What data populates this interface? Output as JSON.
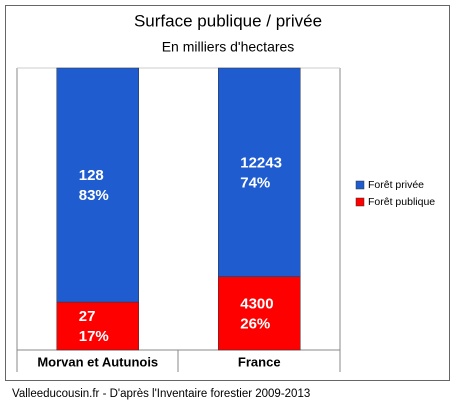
{
  "chart_data": {
    "type": "stacked-bar-100",
    "title": "Surface publique / privée",
    "subtitle": "En milliers d'hectares",
    "categories": [
      "Morvan et Autunois",
      "France"
    ],
    "ylim": [
      0,
      100
    ],
    "series": [
      {
        "name": "Forêt publique",
        "color": "#ff0000",
        "values": [
          17,
          26
        ],
        "value_labels": [
          "17%",
          "26%"
        ],
        "counts": [
          27,
          4300
        ]
      },
      {
        "name": "Forêt privée",
        "color": "#1e5ccf",
        "values": [
          83,
          74
        ],
        "value_labels": [
          "83%",
          "74%"
        ],
        "counts": [
          128,
          12243
        ]
      }
    ],
    "source": "Valleeducousin.fr - D'après l'Inventaire forestier 2009-2013"
  }
}
